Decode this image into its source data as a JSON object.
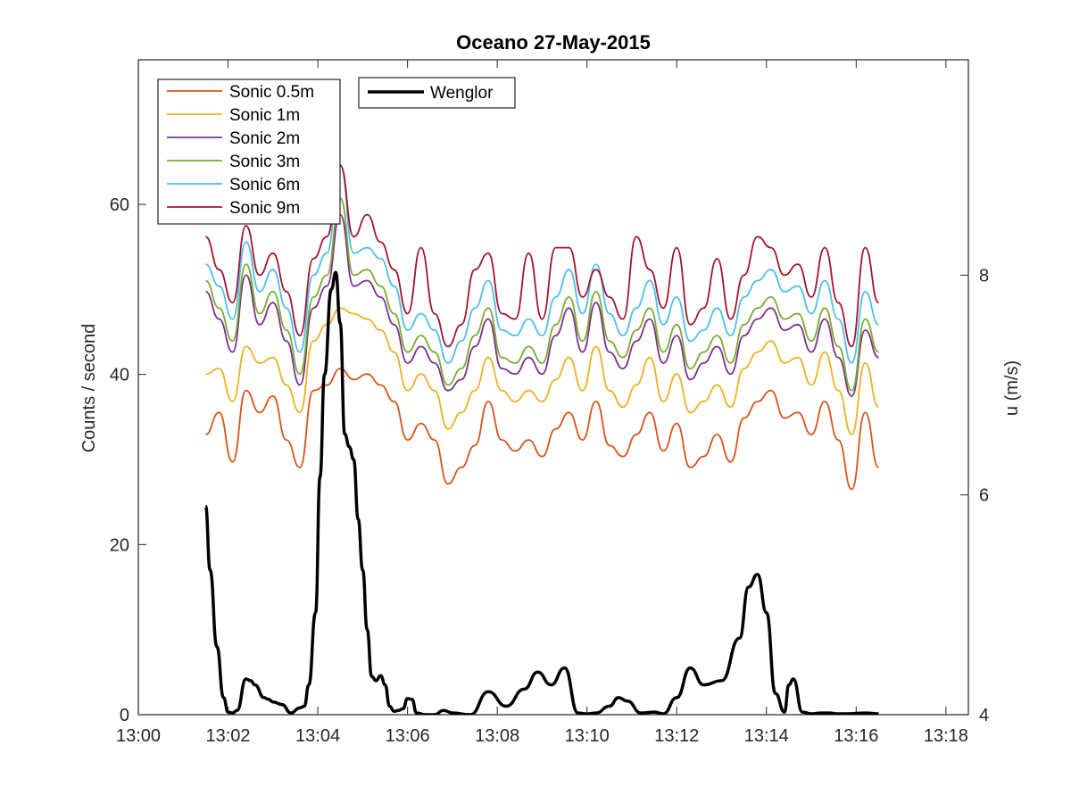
{
  "chart_data": {
    "type": "line",
    "title": "Oceano 27-May-2015",
    "ylabel_left": "Counts / second",
    "ylabel_right": "u (m/s)",
    "xlim": [
      0,
      18.5
    ],
    "ylim_left": [
      0,
      77
    ],
    "ylim_right": [
      4,
      9.96
    ],
    "xticks": [
      0,
      2,
      4,
      6,
      8,
      10,
      12,
      14,
      16,
      18
    ],
    "xtick_labels": [
      "13:00",
      "13:02",
      "13:04",
      "13:06",
      "13:08",
      "13:10",
      "13:12",
      "13:14",
      "13:16",
      "13:18"
    ],
    "yticks_left": [
      0,
      20,
      40,
      60
    ],
    "yticks_right": [
      4,
      6,
      8
    ],
    "grid": false,
    "legend_left_position": "top-left",
    "legend_right_position": "top-center-left",
    "x": [
      1.5,
      1.8,
      2.1,
      2.4,
      2.7,
      3.0,
      3.3,
      3.6,
      3.9,
      4.2,
      4.5,
      4.8,
      5.1,
      5.4,
      5.7,
      6.0,
      6.3,
      6.6,
      6.9,
      7.2,
      7.5,
      7.8,
      8.1,
      8.4,
      8.7,
      9.0,
      9.3,
      9.6,
      9.9,
      10.2,
      10.5,
      10.8,
      11.1,
      11.4,
      11.7,
      12.0,
      12.3,
      12.6,
      12.9,
      13.2,
      13.5,
      13.8,
      14.1,
      14.4,
      14.7,
      15.0,
      15.3,
      15.6,
      15.9,
      16.2,
      16.5
    ],
    "series_u": [
      {
        "name": "Sonic 0.5m",
        "axis": "right",
        "color": "#D95319",
        "values": [
          6.55,
          6.75,
          6.3,
          6.95,
          6.75,
          6.9,
          6.5,
          6.25,
          6.95,
          7.0,
          7.15,
          7.05,
          7.1,
          7.0,
          6.85,
          6.5,
          6.65,
          6.5,
          6.1,
          6.25,
          6.45,
          6.85,
          6.5,
          6.4,
          6.5,
          6.35,
          6.6,
          6.75,
          6.5,
          6.85,
          6.45,
          6.35,
          6.55,
          6.75,
          6.4,
          6.65,
          6.25,
          6.35,
          6.55,
          6.3,
          6.7,
          6.85,
          6.95,
          6.7,
          6.75,
          6.55,
          6.85,
          6.5,
          6.05,
          6.75,
          6.25
        ]
      },
      {
        "name": "Sonic 1m",
        "axis": "right",
        "color": "#EDB120",
        "values": [
          7.1,
          7.15,
          6.85,
          7.35,
          7.2,
          7.25,
          7.0,
          6.75,
          7.4,
          7.55,
          7.7,
          7.65,
          7.6,
          7.5,
          7.3,
          6.95,
          7.1,
          6.95,
          6.6,
          6.75,
          6.95,
          7.25,
          6.95,
          6.85,
          6.95,
          6.85,
          7.05,
          7.25,
          6.95,
          7.35,
          6.95,
          6.8,
          7.0,
          7.25,
          6.85,
          7.1,
          6.75,
          6.85,
          7.0,
          6.8,
          7.15,
          7.3,
          7.4,
          7.2,
          7.25,
          7.0,
          7.3,
          6.95,
          6.55,
          7.2,
          6.8
        ]
      },
      {
        "name": "Sonic 2m",
        "axis": "right",
        "color": "#7E2F8E",
        "values": [
          7.85,
          7.6,
          7.3,
          8.0,
          7.55,
          7.75,
          7.4,
          7.0,
          7.7,
          7.9,
          8.55,
          7.9,
          7.95,
          7.8,
          7.55,
          7.2,
          7.35,
          7.2,
          6.95,
          7.05,
          7.35,
          7.6,
          7.15,
          7.1,
          7.25,
          7.1,
          7.45,
          7.7,
          7.3,
          7.75,
          7.3,
          7.15,
          7.4,
          7.6,
          7.2,
          7.45,
          7.05,
          7.2,
          7.35,
          7.1,
          7.45,
          7.6,
          7.7,
          7.5,
          7.55,
          7.3,
          7.6,
          7.25,
          6.9,
          7.5,
          7.25
        ]
      },
      {
        "name": "Sonic 3m",
        "axis": "right",
        "color": "#77AC30",
        "values": [
          7.95,
          7.7,
          7.4,
          8.1,
          7.65,
          7.85,
          7.5,
          7.1,
          7.8,
          8.0,
          8.7,
          8.0,
          8.05,
          7.9,
          7.65,
          7.3,
          7.45,
          7.3,
          7.0,
          7.15,
          7.45,
          7.7,
          7.25,
          7.2,
          7.35,
          7.2,
          7.55,
          7.8,
          7.4,
          7.85,
          7.4,
          7.25,
          7.5,
          7.7,
          7.3,
          7.55,
          7.15,
          7.3,
          7.45,
          7.2,
          7.55,
          7.7,
          7.8,
          7.6,
          7.65,
          7.4,
          7.7,
          7.35,
          6.95,
          7.6,
          7.3
        ]
      },
      {
        "name": "Sonic 6m",
        "axis": "right",
        "color": "#4DBEEE",
        "values": [
          8.1,
          7.9,
          7.6,
          8.3,
          7.85,
          8.05,
          7.7,
          7.3,
          8.0,
          8.2,
          9.0,
          8.2,
          8.25,
          8.15,
          7.9,
          7.5,
          7.65,
          7.5,
          7.2,
          7.4,
          7.7,
          7.95,
          7.5,
          7.45,
          7.6,
          7.45,
          7.8,
          8.05,
          7.65,
          8.1,
          7.65,
          7.45,
          7.7,
          7.95,
          7.55,
          7.8,
          7.4,
          7.5,
          7.7,
          7.45,
          7.8,
          7.95,
          8.05,
          7.85,
          7.9,
          7.65,
          7.95,
          7.6,
          7.2,
          7.85,
          7.55
        ]
      },
      {
        "name": "Sonic 9m",
        "axis": "right",
        "color": "#A2142F",
        "values": [
          8.35,
          8.05,
          7.75,
          8.45,
          8.0,
          8.2,
          7.85,
          7.45,
          8.15,
          8.35,
          9.0,
          8.35,
          8.55,
          8.3,
          8.05,
          7.65,
          8.25,
          7.65,
          7.35,
          7.55,
          8.05,
          8.2,
          7.65,
          7.6,
          8.2,
          7.6,
          8.25,
          8.25,
          7.8,
          8.05,
          7.8,
          7.6,
          8.35,
          8.05,
          7.7,
          8.25,
          7.55,
          7.7,
          8.15,
          7.6,
          8.0,
          8.35,
          8.25,
          8.0,
          8.1,
          7.8,
          8.25,
          7.75,
          7.35,
          8.25,
          7.75
        ]
      }
    ],
    "series_counts": {
      "name": "Wenglor",
      "axis": "left",
      "color": "#000000",
      "x": [
        1.5,
        1.6,
        1.75,
        1.9,
        2.0,
        2.1,
        2.2,
        2.4,
        2.5,
        2.6,
        2.8,
        2.9,
        3.0,
        3.2,
        3.4,
        3.6,
        3.7,
        3.8,
        3.95,
        4.05,
        4.15,
        4.3,
        4.4,
        4.5,
        4.6,
        4.7,
        4.8,
        4.9,
        5.0,
        5.1,
        5.2,
        5.3,
        5.4,
        5.5,
        5.6,
        5.7,
        5.8,
        5.9,
        6.0,
        6.1,
        6.2,
        6.4,
        6.6,
        6.8,
        7.0,
        7.4,
        7.8,
        8.2,
        8.6,
        8.9,
        9.2,
        9.5,
        9.8,
        10.0,
        10.2,
        10.5,
        10.7,
        10.9,
        11.2,
        11.5,
        11.7,
        12.0,
        12.3,
        12.6,
        13.0,
        13.4,
        13.6,
        13.8,
        14.0,
        14.2,
        14.4,
        14.5,
        14.6,
        14.8,
        15.0,
        15.2,
        15.4,
        15.6,
        15.8,
        16.2,
        16.5
      ],
      "values": [
        24.5,
        17.0,
        8.0,
        2.0,
        0.3,
        0.2,
        0.5,
        4.2,
        4.0,
        3.5,
        2.0,
        1.8,
        1.5,
        1.2,
        0.2,
        0.8,
        1.0,
        3.5,
        12.0,
        28.0,
        40.0,
        50.0,
        52.0,
        46.0,
        33.0,
        31.5,
        30.0,
        23.0,
        17.0,
        10.0,
        4.5,
        4.0,
        4.6,
        3.5,
        1.0,
        0.4,
        0.5,
        0.7,
        1.9,
        1.8,
        0.2,
        0.0,
        0.0,
        0.5,
        0.2,
        0.0,
        2.7,
        1.0,
        3.0,
        5.0,
        3.5,
        5.5,
        0.2,
        0.1,
        0.2,
        1.0,
        2.0,
        1.6,
        0.2,
        0.3,
        0.1,
        2.0,
        5.5,
        3.5,
        4.0,
        9.0,
        15.0,
        16.5,
        12.0,
        2.5,
        0.3,
        3.5,
        4.2,
        0.3,
        0.1,
        0.2,
        0.2,
        0.1,
        0.1,
        0.2,
        0.1
      ]
    },
    "legend_left": [
      "Sonic 0.5m",
      "Sonic 1m",
      "Sonic 2m",
      "Sonic 3m",
      "Sonic 6m",
      "Sonic 9m"
    ],
    "legend_right": [
      "Wenglor"
    ]
  }
}
